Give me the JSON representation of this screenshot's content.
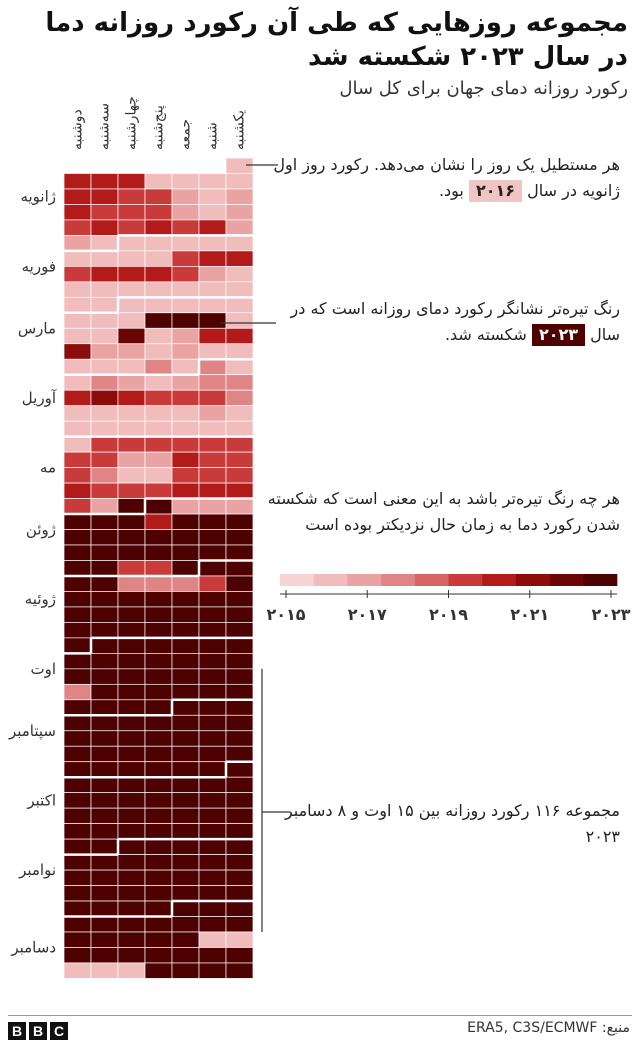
{
  "title": "مجموعه روزهایی که طی آن رکورد روزانه دما در سال ۲۰۲۳ شکسته شد",
  "subtitle": "رکورد روزانه دمای جهان برای کل سال",
  "annotations": {
    "cell_note_before": "هر مستطیل یک روز را نشان می‌دهد. رکورد روز اول ژانویه در سال",
    "cell_note_year": "۲۰۱۶",
    "cell_note_after": "بود.",
    "dark_note_before": "رنگ تیره‌تر نشانگر رکورد دمای روزانه است که در سال",
    "dark_note_year": "۲۰۲۳",
    "dark_note_after": "شکسته شد.",
    "gradient_note": "هر چه رنگ تیره‌تر باشد به این معنی است که شکسته شدن رکورد دما به زمان حال نزدیکتر بوده است",
    "total_note": "مجموعه ۱۱۶ رکورد روزانه بین ۱۵ اوت و ۸ دسامبر ۲۰۲۳"
  },
  "legend": {
    "colors": [
      "#f7d4d4",
      "#f0bcbc",
      "#e9a3a3",
      "#e08585",
      "#d56464",
      "#c93b3b",
      "#b31b1b",
      "#8c0b0b",
      "#6a0505",
      "#4d0101"
    ],
    "tick_labels": [
      "۲۰۱۵",
      "۲۰۱۷",
      "۲۰۱۹",
      "۲۰۲۱",
      "۲۰۲۳"
    ]
  },
  "footer": {
    "logo_letters": [
      "B",
      "B",
      "C"
    ],
    "source": "منبع: ERA5, C3S/ECMWF"
  },
  "chart_data": {
    "type": "heatmap",
    "title": "مجموعه روزهایی که طی آن رکورد روزانه دما در سال ۲۰۲۳ شکسته شد",
    "subtitle": "رکورد روزانه دمای جهان برای کل سال",
    "days_of_week": [
      "دوشنبه",
      "سه‌شنبه",
      "چهارشنبه",
      "پنج‌شنبه",
      "جمعه",
      "شنبه",
      "یکشنبه"
    ],
    "months": [
      "ژانویه",
      "فوریه",
      "مارس",
      "آوریل",
      "مه",
      "ژوئن",
      "ژوئیه",
      "اوت",
      "سپتامبر",
      "اکتبر",
      "نوامبر",
      "دسامبر"
    ],
    "color_scale": {
      "min_year": 2015,
      "max_year": 2023
    },
    "first_day": "2023-01-01",
    "first_day_record_year": 2016,
    "total_records_2023": 116,
    "streak_start": "2023-08-15",
    "streak_end": "2023-12-08",
    "weeks": [
      [
        null,
        null,
        null,
        null,
        null,
        null,
        2016
      ],
      [
        2020,
        2020,
        2020,
        2016,
        2016,
        2016,
        2016
      ],
      [
        2020,
        2020,
        2019,
        2019,
        2017,
        2016,
        2017
      ],
      [
        2020,
        2019,
        2019,
        2019,
        2017,
        2016,
        2017
      ],
      [
        2019,
        2020,
        2019,
        2020,
        2019,
        2020,
        2017
      ],
      [
        2017,
        2016,
        2016,
        2016,
        2016,
        2016,
        2016
      ],
      [
        2016,
        2016,
        2016,
        2016,
        2019,
        2020,
        2020
      ],
      [
        2019,
        2020,
        2020,
        2020,
        2019,
        2017,
        2016
      ],
      [
        2016,
        2016,
        2016,
        2016,
        2016,
        2016,
        2016
      ],
      [
        2016,
        2016,
        2016,
        2016,
        2016,
        2016,
        2016
      ],
      [
        2016,
        2016,
        2016,
        2023,
        2023,
        2023,
        2016
      ],
      [
        2016,
        2016,
        2022,
        2016,
        2017,
        2020,
        2020
      ],
      [
        2021,
        2017,
        2017,
        2016,
        2017,
        2016,
        2016
      ],
      [
        2016,
        2016,
        2016,
        2018,
        2016,
        2018,
        2016
      ],
      [
        2016,
        2018,
        2017,
        2016,
        2017,
        2018,
        2018
      ],
      [
        2020,
        2021,
        2020,
        2019,
        2019,
        2019,
        2018
      ],
      [
        2016,
        2016,
        2016,
        2016,
        2016,
        2017,
        2016
      ],
      [
        2016,
        2016,
        2016,
        2016,
        2016,
        2016,
        2016
      ],
      [
        2016,
        2019,
        2019,
        2019,
        2019,
        2019,
        2019
      ],
      [
        2019,
        2019,
        2017,
        2017,
        2020,
        2019,
        2019
      ],
      [
        2019,
        2018,
        2016,
        2016,
        2019,
        2019,
        2019
      ],
      [
        2020,
        2019,
        2019,
        2019,
        2020,
        2020,
        2020
      ],
      [
        2019,
        2017,
        2023,
        2023,
        2017,
        2017,
        2017
      ],
      [
        2023,
        2023,
        2023,
        2020,
        2023,
        2023,
        2023
      ],
      [
        2023,
        2023,
        2023,
        2023,
        2023,
        2023,
        2023
      ],
      [
        2023,
        2023,
        2023,
        2023,
        2023,
        2023,
        2023
      ],
      [
        2023,
        2023,
        2019,
        2019,
        2023,
        2023,
        2023
      ],
      [
        2023,
        2023,
        2018,
        2018,
        2018,
        2019,
        2023
      ],
      [
        2023,
        2023,
        2023,
        2023,
        2023,
        2023,
        2023
      ],
      [
        2023,
        2023,
        2023,
        2023,
        2023,
        2023,
        2023
      ],
      [
        2023,
        2023,
        2023,
        2023,
        2023,
        2023,
        2023
      ],
      [
        2023,
        2023,
        2023,
        2023,
        2023,
        2023,
        2023
      ],
      [
        2023,
        2023,
        2023,
        2023,
        2023,
        2023,
        2023
      ],
      [
        2023,
        2023,
        2023,
        2023,
        2023,
        2023,
        2023
      ],
      [
        2018,
        2023,
        2023,
        2023,
        2023,
        2023,
        2023
      ],
      [
        2023,
        2023,
        2023,
        2023,
        2023,
        2023,
        2023
      ],
      [
        2023,
        2023,
        2023,
        2023,
        2023,
        2023,
        2023
      ],
      [
        2023,
        2023,
        2023,
        2023,
        2023,
        2023,
        2023
      ],
      [
        2023,
        2023,
        2023,
        2023,
        2023,
        2023,
        2023
      ],
      [
        2023,
        2023,
        2023,
        2023,
        2023,
        2023,
        2023
      ],
      [
        2023,
        2023,
        2023,
        2023,
        2023,
        2023,
        2023
      ],
      [
        2023,
        2023,
        2023,
        2023,
        2023,
        2023,
        2023
      ],
      [
        2023,
        2023,
        2023,
        2023,
        2023,
        2023,
        2023
      ],
      [
        2023,
        2023,
        2023,
        2023,
        2023,
        2023,
        2023
      ],
      [
        2023,
        2023,
        2023,
        2023,
        2023,
        2023,
        2023
      ],
      [
        2023,
        2023,
        2023,
        2023,
        2023,
        2023,
        2023
      ],
      [
        2023,
        2023,
        2023,
        2023,
        2023,
        2023,
        2023
      ],
      [
        2023,
        2023,
        2023,
        2023,
        2023,
        2023,
        2023
      ],
      [
        2023,
        2023,
        2023,
        2023,
        2023,
        2023,
        2023
      ],
      [
        2023,
        2023,
        2023,
        2023,
        2023,
        2023,
        2023
      ],
      [
        2023,
        2023,
        2023,
        2023,
        2023,
        2016,
        2016
      ],
      [
        2023,
        2023,
        2023,
        2023,
        2023,
        2023,
        2023
      ],
      [
        2016,
        2016,
        2016,
        2023,
        2023,
        2023,
        2023
      ],
      [
        2023,
        2023,
        2023,
        2023,
        2023,
        2023,
        2023
      ]
    ]
  }
}
